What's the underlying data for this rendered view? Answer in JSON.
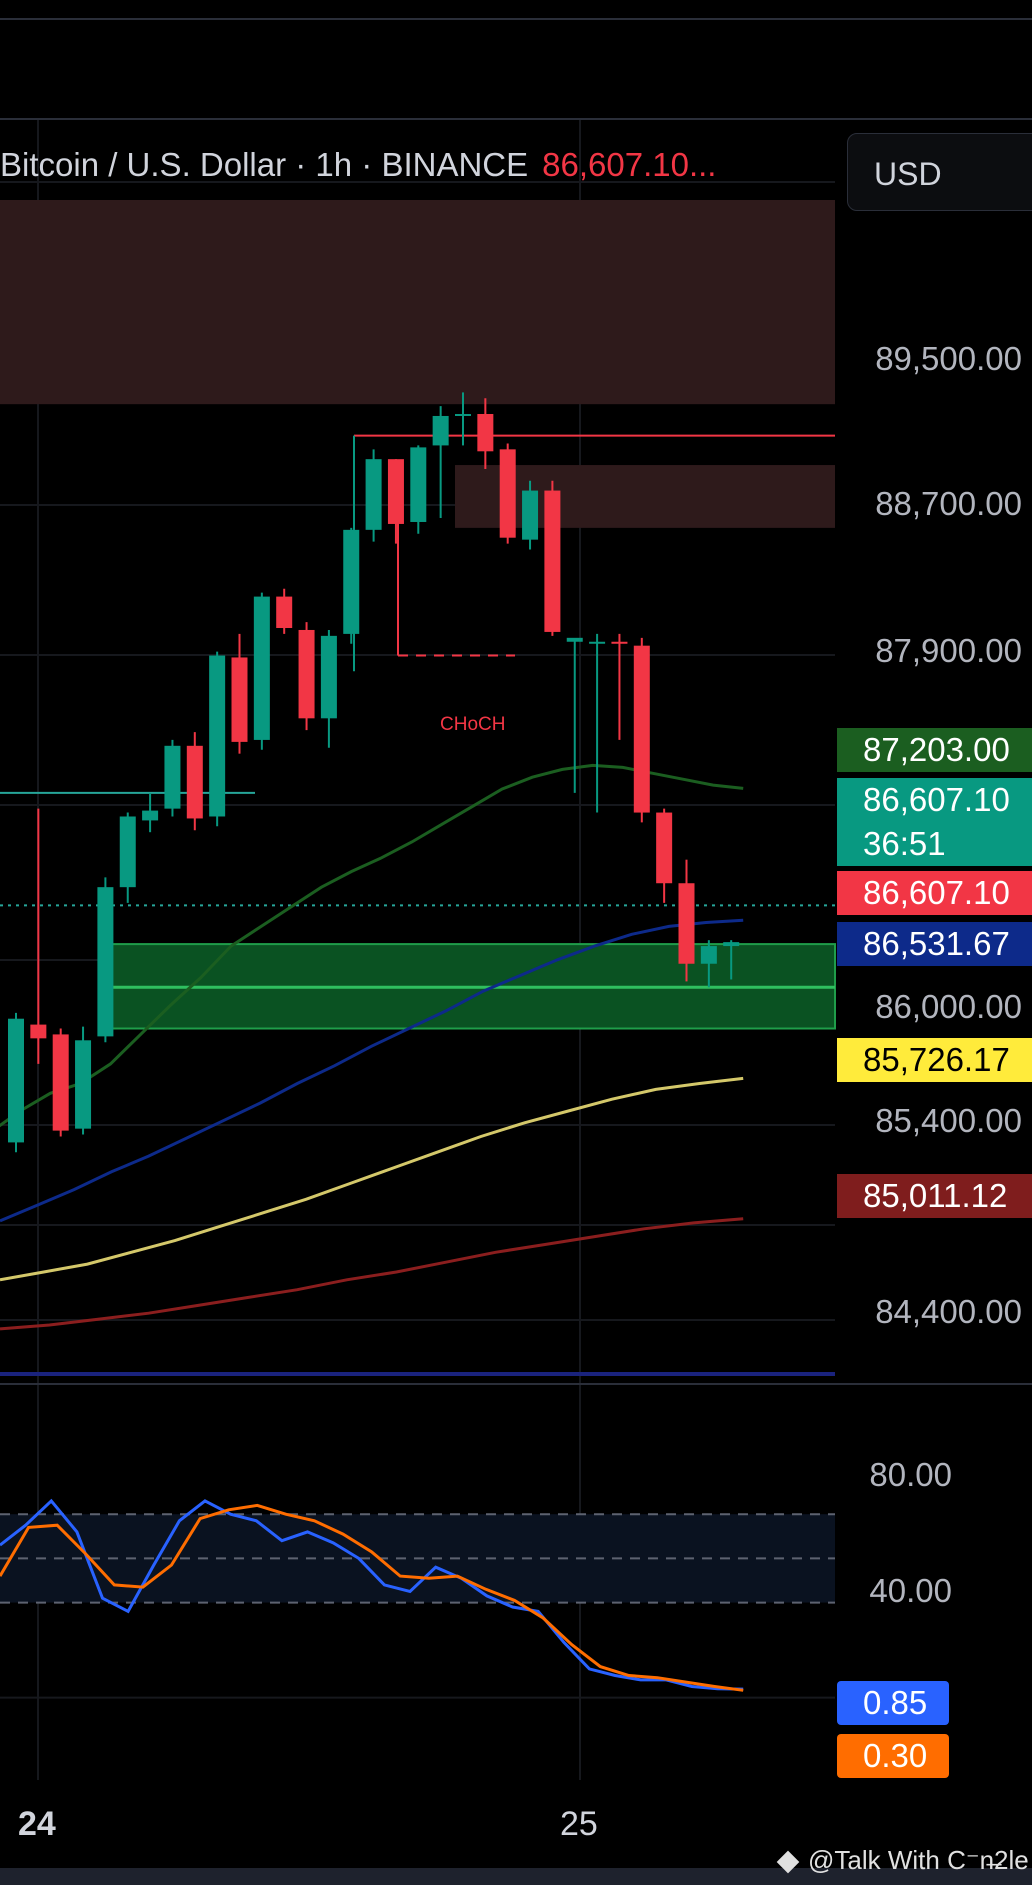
{
  "header": {
    "symbol": "Bitcoin / U.S. Dollar · 1h · BINANCE",
    "last_price_text": "86,607.10..."
  },
  "currency_button": "USD",
  "price_axis": {
    "ticks": [
      "89,500.00",
      "88,700.00",
      "87,900.00",
      "86,000.00",
      "85,400.00",
      "84,400.00"
    ]
  },
  "price_labels": {
    "ema_fast": {
      "value": "87,203.00",
      "bg": "#1b5e20",
      "fg": "#ffffff"
    },
    "last": {
      "value": "86,607.10",
      "countdown": "36:51",
      "bg": "#089981",
      "fg": "#ffffff"
    },
    "last_red": {
      "value": "86,607.10",
      "bg": "#f23645",
      "fg": "#ffffff"
    },
    "ema_mid": {
      "value": "86,531.67",
      "bg": "#0d2a8a",
      "fg": "#ffffff"
    },
    "ema_slow": {
      "value": "85,726.17",
      "bg": "#ffeb3b",
      "fg": "#000000"
    },
    "ema_long": {
      "value": "85,011.12",
      "bg": "#7f1d1d",
      "fg": "#ffffff"
    }
  },
  "annotation": {
    "choch": "CHoCH"
  },
  "osc_axis": {
    "ticks": [
      "80.00",
      "40.00"
    ]
  },
  "osc_labels": {
    "k": {
      "value": "0.85",
      "bg": "#2962ff"
    },
    "d": {
      "value": "0.30",
      "bg": "#ff6d00"
    }
  },
  "time_axis": {
    "day1": "24",
    "day2": "25"
  },
  "watermark": "@Talk With C⁻n̶2le",
  "chart_data": [
    {
      "type": "candlestick",
      "title": "Bitcoin / U.S. Dollar · 1h · BINANCE",
      "ylim": [
        84200,
        90200
      ],
      "candles": [
        {
          "o": 85400,
          "h": 86060,
          "l": 85350,
          "c": 86030
        },
        {
          "o": 86000,
          "h": 87100,
          "l": 85800,
          "c": 85930
        },
        {
          "o": 85950,
          "h": 85980,
          "l": 85430,
          "c": 85460
        },
        {
          "o": 85470,
          "h": 85990,
          "l": 85440,
          "c": 85920
        },
        {
          "o": 85940,
          "h": 86750,
          "l": 85910,
          "c": 86700
        },
        {
          "o": 86700,
          "h": 87080,
          "l": 86620,
          "c": 87060
        },
        {
          "o": 87040,
          "h": 87180,
          "l": 86980,
          "c": 87090
        },
        {
          "o": 87100,
          "h": 87450,
          "l": 87060,
          "c": 87420
        },
        {
          "o": 87420,
          "h": 87490,
          "l": 86990,
          "c": 87050
        },
        {
          "o": 87060,
          "h": 87900,
          "l": 87010,
          "c": 87880
        },
        {
          "o": 87870,
          "h": 87990,
          "l": 87380,
          "c": 87440
        },
        {
          "o": 87450,
          "h": 88200,
          "l": 87400,
          "c": 88180
        },
        {
          "o": 88180,
          "h": 88220,
          "l": 87990,
          "c": 88020
        },
        {
          "o": 88010,
          "h": 88050,
          "l": 87500,
          "c": 87560
        },
        {
          "o": 87560,
          "h": 88010,
          "l": 87410,
          "c": 87980
        },
        {
          "o": 87990,
          "h": 88530,
          "l": 87940,
          "c": 88520
        },
        {
          "o": 88520,
          "h": 88930,
          "l": 88460,
          "c": 88880
        },
        {
          "o": 88880,
          "h": 88880,
          "l": 88450,
          "c": 88550
        },
        {
          "o": 88560,
          "h": 88950,
          "l": 88500,
          "c": 88940
        },
        {
          "o": 88950,
          "h": 89150,
          "l": 88580,
          "c": 89100
        },
        {
          "o": 89100,
          "h": 89220,
          "l": 88950,
          "c": 89110
        },
        {
          "o": 89110,
          "h": 89190,
          "l": 88830,
          "c": 88920
        },
        {
          "o": 88930,
          "h": 88960,
          "l": 88450,
          "c": 88480
        },
        {
          "o": 88470,
          "h": 88770,
          "l": 88420,
          "c": 88720
        },
        {
          "o": 88720,
          "h": 88770,
          "l": 87980,
          "c": 88000
        },
        {
          "o": 87950,
          "h": 87960,
          "l": 87180,
          "c": 87970
        },
        {
          "o": 87940,
          "h": 87990,
          "l": 87080,
          "c": 87950
        },
        {
          "o": 87950,
          "h": 87990,
          "l": 87450,
          "c": 87940
        },
        {
          "o": 87930,
          "h": 87970,
          "l": 87030,
          "c": 87080
        },
        {
          "o": 87080,
          "h": 87100,
          "l": 86620,
          "c": 86720
        },
        {
          "o": 86720,
          "h": 86840,
          "l": 86220,
          "c": 86310
        },
        {
          "o": 86310,
          "h": 86430,
          "l": 86190,
          "c": 86400
        },
        {
          "o": 86400,
          "h": 86430,
          "l": 86230,
          "c": 86420
        }
      ],
      "series": [
        {
          "name": "EMA fast",
          "color": "#1b5e20",
          "values": [
            85450,
            85560,
            85650,
            85700,
            85800,
            85950,
            86100,
            86240,
            86400,
            86500,
            86600,
            86700,
            86780,
            86850,
            86930,
            87020,
            87110,
            87200,
            87260,
            87300,
            87320,
            87310,
            87280,
            87250,
            87220,
            87203
          ]
        },
        {
          "name": "EMA mid",
          "color": "#0d2a8a",
          "values": [
            85000,
            85080,
            85160,
            85250,
            85330,
            85420,
            85510,
            85600,
            85700,
            85790,
            85890,
            85980,
            86070,
            86170,
            86250,
            86330,
            86400,
            86460,
            86500,
            86520,
            86531.67
          ]
        },
        {
          "name": "EMA slow",
          "color": "#d4c86a",
          "values": [
            84700,
            84740,
            84780,
            84840,
            84900,
            84970,
            85040,
            85110,
            85190,
            85270,
            85350,
            85430,
            85500,
            85560,
            85620,
            85670,
            85700,
            85726.17
          ]
        },
        {
          "name": "EMA long",
          "color": "#8b1e1e",
          "values": [
            84450,
            84470,
            84500,
            84530,
            84570,
            84610,
            84650,
            84700,
            84740,
            84790,
            84840,
            84880,
            84920,
            84960,
            84990,
            85011.12
          ]
        }
      ],
      "zones": [
        {
          "kind": "supply",
          "from": 89160,
          "to": 90200
        },
        {
          "kind": "supply",
          "from": 88530,
          "to": 88850
        },
        {
          "kind": "demand",
          "from": 85980,
          "to": 86410
        }
      ],
      "levels": [
        {
          "kind": "high",
          "price": 89000
        },
        {
          "kind": "structure",
          "price": 87180
        },
        {
          "kind": "choch",
          "price": 87880
        },
        {
          "kind": "last",
          "price": 86607.1
        }
      ]
    },
    {
      "type": "line",
      "ylim": [
        -5,
        100
      ],
      "bands": [
        80,
        60,
        40
      ],
      "series": [
        {
          "name": "K",
          "color": "#2962ff",
          "values": [
            66,
            75,
            86,
            72,
            42,
            36,
            57,
            77,
            86,
            80,
            77,
            68,
            72,
            67,
            60,
            48,
            45,
            56,
            51,
            43,
            38,
            36,
            22,
            10,
            7,
            5,
            5,
            2,
            1,
            0.85
          ]
        },
        {
          "name": "D",
          "color": "#ff6d00",
          "values": [
            52,
            74,
            75,
            62,
            48,
            47,
            57,
            78,
            82,
            84,
            80,
            77,
            71,
            63,
            52,
            51,
            52,
            46,
            41,
            33,
            21,
            11,
            7,
            6,
            4,
            2,
            0.3
          ]
        }
      ]
    }
  ]
}
